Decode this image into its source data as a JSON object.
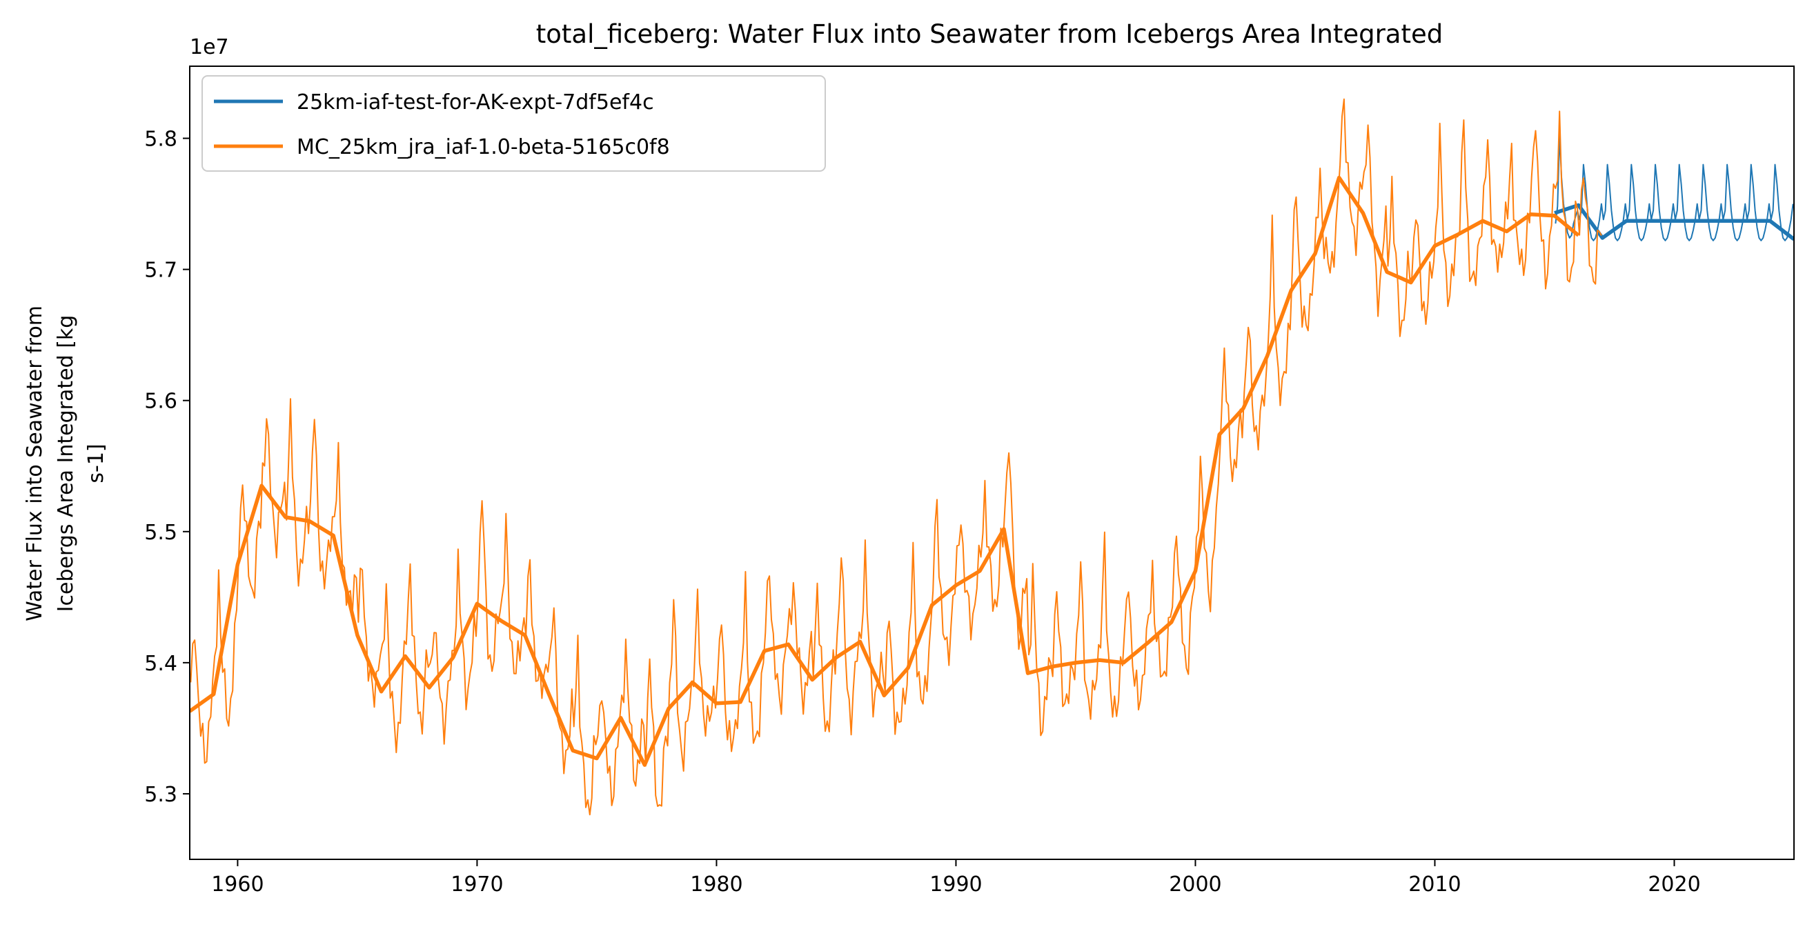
{
  "chart_data": {
    "type": "line",
    "title": "total_ficeberg: Water Flux into Seawater from Icebergs Area Integrated",
    "xlabel": "",
    "ylabel_lines": [
      "Water Flux into Seawater from",
      "Icebergs Area Integrated [kg",
      "s-1]"
    ],
    "y_scale_label": "1e7",
    "xlim": [
      1958,
      2025
    ],
    "ylim": [
      5.25,
      5.855
    ],
    "xticks": [
      1960,
      1970,
      1980,
      1990,
      2000,
      2010,
      2020
    ],
    "yticks": [
      5.3,
      5.4,
      5.5,
      5.6,
      5.7,
      5.8
    ],
    "grid": false,
    "legend_position": "upper-left",
    "series": [
      {
        "name": "25km-iaf-test-for-AK-expt-7df5ef4c",
        "color": "#1f77b4",
        "annual": {
          "x": [
            2015,
            2016,
            2017,
            2018,
            2019,
            2020,
            2021,
            2022,
            2023,
            2024,
            2025
          ],
          "y": [
            5.743,
            5.749,
            5.724,
            5.737,
            5.737,
            5.737,
            5.737,
            5.737,
            5.737,
            5.737,
            5.723
          ]
        },
        "monthly_pattern": [
          5.738,
          5.745,
          5.78,
          5.765,
          5.745,
          5.732,
          5.724,
          5.722,
          5.724,
          5.73,
          5.738,
          5.75
        ],
        "monthly_first_year": [
          5.735,
          5.748,
          5.802,
          5.77,
          5.75,
          5.738,
          5.728,
          5.724,
          5.726,
          5.735,
          5.74,
          5.745
        ]
      },
      {
        "name": "MC_25km_jra_iaf-1.0-beta-5165c0f8",
        "color": "#ff7f0e",
        "annual": {
          "x": [
            1958,
            1959,
            1960,
            1961,
            1962,
            1963,
            1964,
            1965,
            1966,
            1967,
            1968,
            1969,
            1970,
            1971,
            1972,
            1973,
            1974,
            1975,
            1976,
            1977,
            1978,
            1979,
            1980,
            1981,
            1982,
            1983,
            1984,
            1985,
            1986,
            1987,
            1988,
            1989,
            1990,
            1991,
            1992,
            1993,
            1994,
            1995,
            1996,
            1997,
            1998,
            1999,
            2000,
            2001,
            2002,
            2003,
            2004,
            2005,
            2006,
            2007,
            2008,
            2009,
            2010,
            2011,
            2012,
            2013,
            2014,
            2015,
            2016
          ],
          "y": [
            5.363,
            5.376,
            5.475,
            5.535,
            5.511,
            5.508,
            5.497,
            5.421,
            5.378,
            5.405,
            5.381,
            5.404,
            5.445,
            5.432,
            5.421,
            5.376,
            5.333,
            5.327,
            5.358,
            5.322,
            5.365,
            5.385,
            5.369,
            5.37,
            5.409,
            5.414,
            5.387,
            5.404,
            5.416,
            5.375,
            5.396,
            5.444,
            5.459,
            5.47,
            5.502,
            5.392,
            5.397,
            5.4,
            5.402,
            5.4,
            5.415,
            5.431,
            5.47,
            5.574,
            5.594,
            5.634,
            5.684,
            5.712,
            5.77,
            5.743,
            5.698,
            5.69,
            5.718,
            5.727,
            5.737,
            5.729,
            5.742,
            5.741,
            5.726
          ]
        }
      }
    ]
  }
}
